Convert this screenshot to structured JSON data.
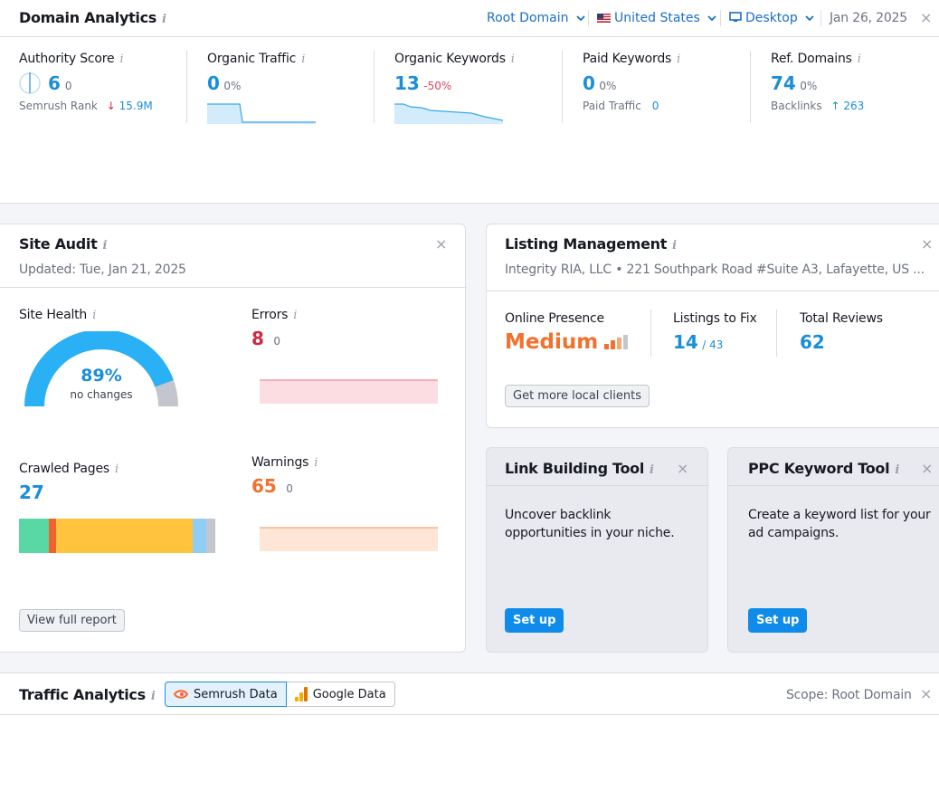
{
  "domain_analytics": {
    "title": "Domain Analytics",
    "info": "i",
    "root_domain": "Root Domain",
    "country": "United States",
    "device": "Desktop",
    "date": "Jan 26, 2025",
    "close": "×",
    "metrics": {
      "authority": {
        "label": "Authority Score",
        "value": "6",
        "delta": "0",
        "sub_label": "Semrush Rank",
        "sub_arrow": "↓",
        "sub_value": "15.9M"
      },
      "organic_traffic": {
        "label": "Organic Traffic",
        "value": "0",
        "delta": "0%"
      },
      "organic_keywords": {
        "label": "Organic Keywords",
        "value": "13",
        "delta": "-50%"
      },
      "paid_keywords": {
        "label": "Paid Keywords",
        "value": "0",
        "delta": "0%",
        "sub_label": "Paid Traffic",
        "sub_value": "0"
      },
      "ref_domains": {
        "label": "Ref. Domains",
        "value": "74",
        "delta": "0%",
        "sub_label": "Backlinks",
        "sub_arrow": "↑",
        "sub_value": "263"
      }
    }
  },
  "site_audit": {
    "title": "Site Audit",
    "info": "i",
    "close": "×",
    "updated": "Updated: Tue, Jan 21, 2025",
    "health_label": "Site Health",
    "health_value": "89%",
    "health_fraction": 0.89,
    "health_note": "no changes",
    "errors_label": "Errors",
    "errors_value": "8",
    "errors_delta": "0",
    "crawled_label": "Crawled Pages",
    "crawled_value": "27",
    "warnings_label": "Warnings",
    "warnings_value": "65",
    "warnings_delta": "0",
    "view_report": "View full report",
    "colors": {
      "green": "#59d8a6",
      "red": "#f1612d",
      "yellow": "#ffc33d",
      "lightblue": "#8fcdf5",
      "gray": "#c3c6ce"
    }
  },
  "listing_management": {
    "title": "Listing Management",
    "info": "i",
    "close": "×",
    "address": "Integrity RIA, LLC • 221 Southpark Road #Suite A3, Lafayette, US ...",
    "presence_label": "Online Presence",
    "presence_value": "Medium",
    "fix_label": "Listings to Fix",
    "fix_value": "14",
    "fix_total": "/ 43",
    "reviews_label": "Total Reviews",
    "reviews_value": "62",
    "cta": "Get more local clients"
  },
  "link_building": {
    "title": "Link Building Tool",
    "info": "i",
    "close": "×",
    "description": "Uncover backlink opportunities in your niche.",
    "button": "Set up"
  },
  "ppc_keyword": {
    "title": "PPC Keyword Tool",
    "info": "i",
    "close": "×",
    "description": "Create a keyword list for your ad campaigns.",
    "button": "Set up"
  },
  "traffic_analytics": {
    "title": "Traffic Analytics",
    "info": "i",
    "close": "×",
    "tab_semrush": "Semrush Data",
    "tab_google": "Google Data",
    "scope": "Scope: Root Domain"
  }
}
